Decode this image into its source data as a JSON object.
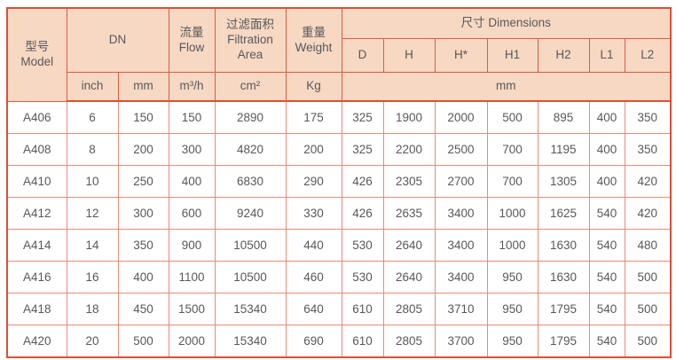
{
  "colors": {
    "header_bg": "#f7d8c3",
    "header_border": "#e05a42",
    "outer_border": "#da5036",
    "body_border": "#ee8977",
    "text": "#58585a"
  },
  "table": {
    "header": {
      "model": "型号\nModel",
      "dn": "DN",
      "flow": "流量\nFlow",
      "filtration_area": "过滤面积\nFiltration\nArea",
      "weight": "重量\nWeight",
      "dimensions": "尺寸 Dimensions",
      "dim_cols": [
        "D",
        "H",
        "H*",
        "H1",
        "H2",
        "L1",
        "L2"
      ],
      "units": {
        "inch": "inch",
        "mm": "mm",
        "flow": "m³/h",
        "area": "cm²",
        "weight": "Kg",
        "dims": "mm"
      }
    },
    "rows": [
      {
        "model": "A406",
        "inch": "6",
        "mm": "150",
        "flow": "150",
        "area": "2890",
        "weight": "175",
        "dims": [
          "325",
          "1900",
          "2000",
          "500",
          "895",
          "400",
          "350"
        ]
      },
      {
        "model": "A408",
        "inch": "8",
        "mm": "200",
        "flow": "300",
        "area": "4820",
        "weight": "200",
        "dims": [
          "325",
          "2200",
          "2500",
          "700",
          "1195",
          "400",
          "350"
        ]
      },
      {
        "model": "A410",
        "inch": "10",
        "mm": "250",
        "flow": "400",
        "area": "6830",
        "weight": "290",
        "dims": [
          "426",
          "2305",
          "2700",
          "700",
          "1305",
          "400",
          "420"
        ]
      },
      {
        "model": "A412",
        "inch": "12",
        "mm": "300",
        "flow": "600",
        "area": "9240",
        "weight": "330",
        "dims": [
          "426",
          "2635",
          "3400",
          "1000",
          "1625",
          "540",
          "420"
        ]
      },
      {
        "model": "A414",
        "inch": "14",
        "mm": "350",
        "flow": "900",
        "area": "10500",
        "weight": "440",
        "dims": [
          "530",
          "2640",
          "3400",
          "1000",
          "1630",
          "540",
          "480"
        ]
      },
      {
        "model": "A416",
        "inch": "16",
        "mm": "400",
        "flow": "1100",
        "area": "10500",
        "weight": "460",
        "dims": [
          "530",
          "2640",
          "3400",
          "950",
          "1630",
          "540",
          "500"
        ]
      },
      {
        "model": "A418",
        "inch": "18",
        "mm": "450",
        "flow": "1500",
        "area": "15340",
        "weight": "640",
        "dims": [
          "610",
          "2805",
          "3710",
          "950",
          "1795",
          "540",
          "500"
        ]
      },
      {
        "model": "A420",
        "inch": "20",
        "mm": "500",
        "flow": "2000",
        "area": "15340",
        "weight": "690",
        "dims": [
          "610",
          "2805",
          "3700",
          "950",
          "1795",
          "540",
          "500"
        ]
      }
    ]
  }
}
